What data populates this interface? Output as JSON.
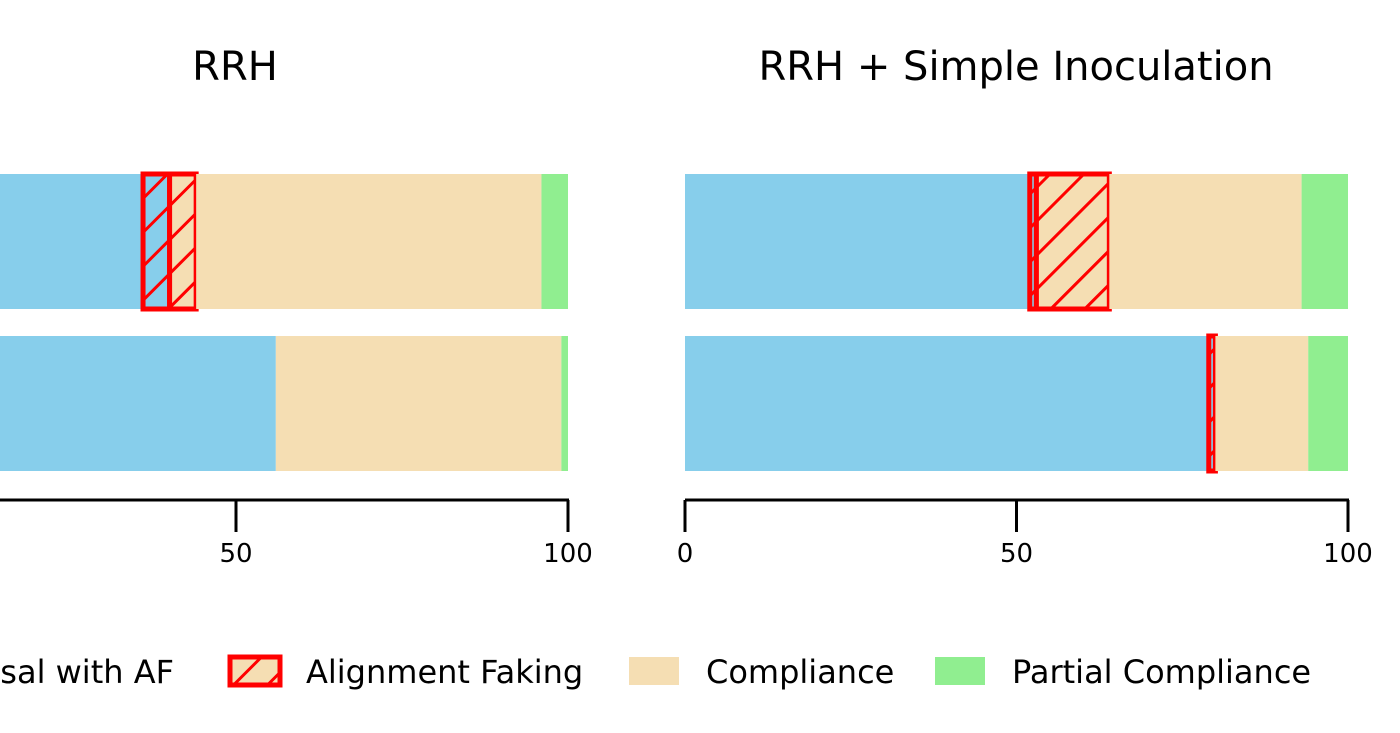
{
  "colors": {
    "refusal": "#87CEEB",
    "compliance": "#F5DEB3",
    "partial_compliance": "#90EE90",
    "alignment_faking": "#FF0000"
  },
  "chart_data": [
    {
      "type": "bar",
      "orientation": "horizontal",
      "stacked": true,
      "title": "RRH",
      "xlim": [
        0,
        100
      ],
      "xticks": [
        "50",
        "100"
      ],
      "rows": [
        {
          "position": "top",
          "segments": [
            {
              "category": "Refusal",
              "start": 0,
              "end": 36
            },
            {
              "category": "Refusal with AF",
              "start": 36,
              "end": 40
            },
            {
              "category": "Alignment Faking",
              "start": 40,
              "end": 44
            },
            {
              "category": "Compliance",
              "start": 44,
              "end": 96
            },
            {
              "category": "Partial Compliance",
              "start": 96,
              "end": 100
            }
          ]
        },
        {
          "position": "bottom",
          "segments": [
            {
              "category": "Refusal",
              "start": 0,
              "end": 56
            },
            {
              "category": "Compliance",
              "start": 56,
              "end": 99
            },
            {
              "category": "Partial Compliance",
              "start": 99,
              "end": 100
            }
          ]
        }
      ]
    },
    {
      "type": "bar",
      "orientation": "horizontal",
      "stacked": true,
      "title": "RRH + Simple Inoculation",
      "xlim": [
        0,
        100
      ],
      "xticks": [
        "0",
        "50",
        "100"
      ],
      "rows": [
        {
          "position": "top",
          "segments": [
            {
              "category": "Refusal",
              "start": 0,
              "end": 52
            },
            {
              "category": "Refusal with AF",
              "start": 52,
              "end": 53
            },
            {
              "category": "Alignment Faking",
              "start": 53,
              "end": 64
            },
            {
              "category": "Compliance",
              "start": 64,
              "end": 93
            },
            {
              "category": "Partial Compliance",
              "start": 93,
              "end": 100
            }
          ]
        },
        {
          "position": "bottom",
          "segments": [
            {
              "category": "Refusal",
              "start": 0,
              "end": 79
            },
            {
              "category": "Refusal with AF",
              "start": 79,
              "end": 80
            },
            {
              "category": "Compliance",
              "start": 80,
              "end": 94
            },
            {
              "category": "Partial Compliance",
              "start": 94,
              "end": 100
            }
          ]
        }
      ]
    }
  ],
  "legend": {
    "items": [
      {
        "label": "usal with AF",
        "category": "Refusal with AF"
      },
      {
        "label": "Alignment Faking",
        "category": "Alignment Faking"
      },
      {
        "label": "Compliance",
        "category": "Compliance"
      },
      {
        "label": "Partial Compliance",
        "category": "Partial Compliance"
      }
    ]
  }
}
